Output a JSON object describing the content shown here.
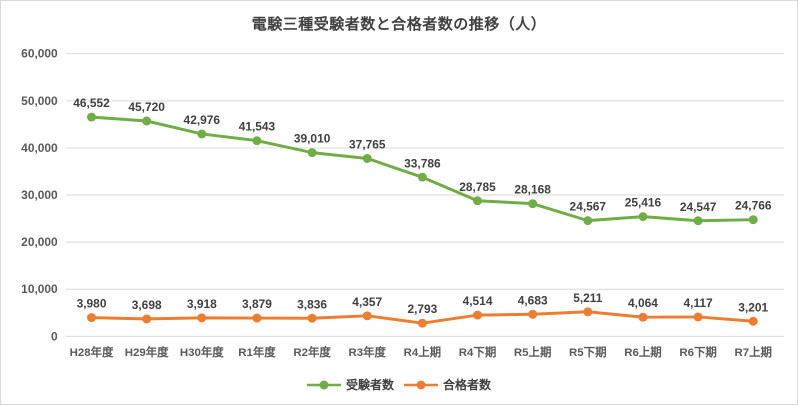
{
  "chart": {
    "title": "電験三種受験者数と合格者数の推移（人）"
  },
  "chart_data": {
    "type": "line",
    "title": "電験三種受験者数と合格者数の推移（人）",
    "categories": [
      "H28年度",
      "H29年度",
      "H30年度",
      "R1年度",
      "R2年度",
      "R3年度",
      "R4上期",
      "R4下期",
      "R5上期",
      "R5下期",
      "R6上期",
      "R6下期",
      "R7上期"
    ],
    "series": [
      {
        "name": "受験者数",
        "color": "#70AD47",
        "values": [
          46552,
          45720,
          42976,
          41543,
          39010,
          37765,
          33786,
          28785,
          28168,
          24567,
          25416,
          24547,
          24766
        ]
      },
      {
        "name": "合格者数",
        "color": "#ED7D31",
        "values": [
          3980,
          3698,
          3918,
          3879,
          3836,
          4357,
          2793,
          4514,
          4683,
          5211,
          4064,
          4117,
          3201
        ]
      }
    ],
    "xlabel": "",
    "ylabel": "",
    "ylim": [
      0,
      60000
    ],
    "ytick_step": 10000,
    "ytick_labels": [
      "0",
      "10,000",
      "20,000",
      "30,000",
      "40,000",
      "50,000",
      "60,000"
    ],
    "grid": true,
    "data_labels": true,
    "legend_position": "bottom"
  },
  "colors": {
    "grid": "#D9D9D9",
    "axis_text": "#595959",
    "data_label_text": "#404040",
    "title_text": "#404040",
    "frame_border": "#D9D9D9",
    "background": "#FFFFFF"
  }
}
